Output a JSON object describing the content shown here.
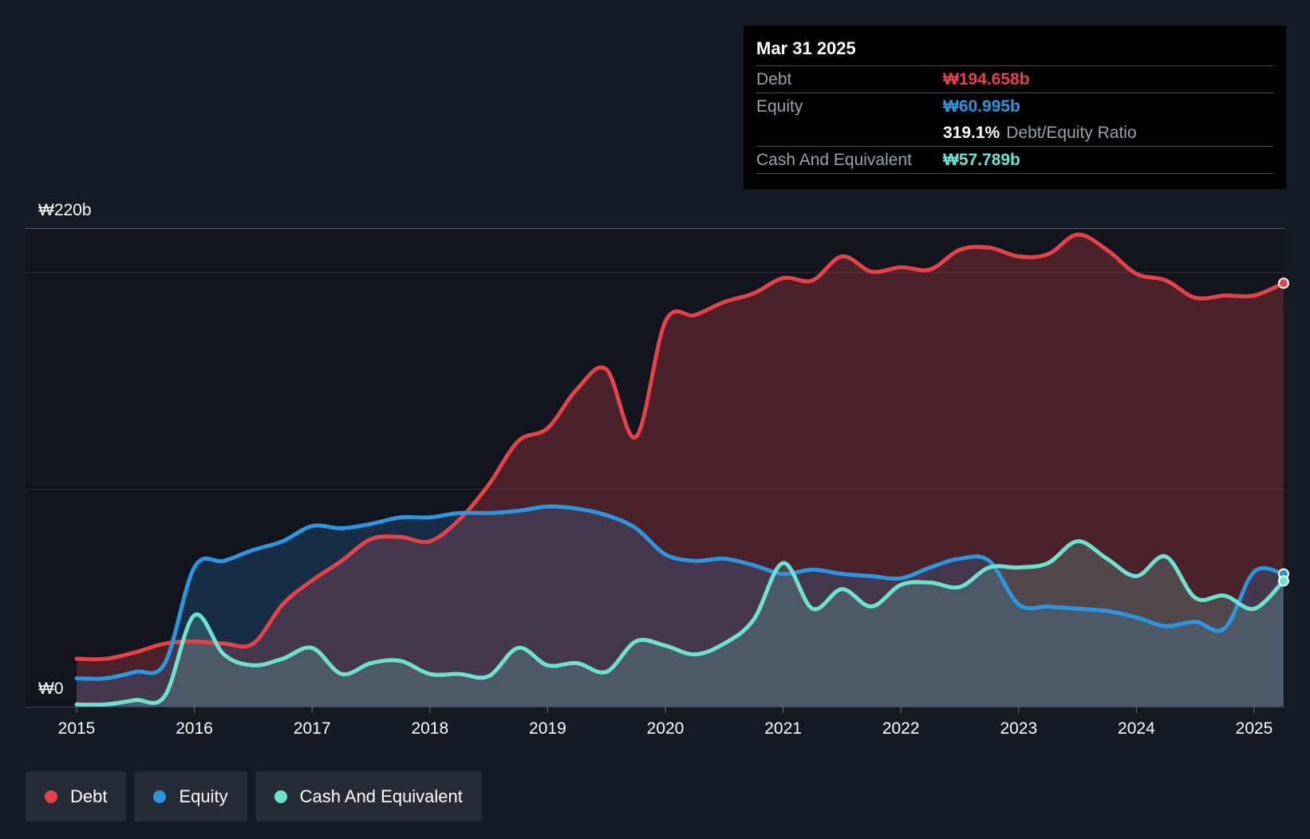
{
  "tooltip": {
    "date": "Mar 31 2025",
    "debt_label": "Debt",
    "debt_value": "₩194.658b",
    "equity_label": "Equity",
    "equity_value": "₩60.995b",
    "ratio_value": "319.1%",
    "ratio_label": "Debt/Equity Ratio",
    "cash_label": "Cash And Equivalent",
    "cash_value": "₩57.789b"
  },
  "legend": [
    {
      "label": "Debt",
      "color": "#e5424a"
    },
    {
      "label": "Equity",
      "color": "#2b97e0"
    },
    {
      "label": "Cash And Equivalent",
      "color": "#6ce3d0"
    }
  ],
  "chart_data": {
    "type": "area",
    "title": "",
    "xlabel": "",
    "ylabel": "",
    "ylim": [
      0,
      220
    ],
    "xlim": [
      2015.0,
      2025.25
    ],
    "y_tick_labels": [
      {
        "value": 220,
        "label": "₩220b"
      },
      {
        "value": 0,
        "label": "₩0"
      }
    ],
    "gridlines": [
      200,
      100
    ],
    "x_ticks": [
      "2015",
      "2016",
      "2017",
      "2018",
      "2019",
      "2020",
      "2021",
      "2022",
      "2023",
      "2024",
      "2025"
    ],
    "series": [
      {
        "name": "Debt",
        "color": "#e5424a",
        "x": [
          2015.0,
          2015.25,
          2015.5,
          2015.75,
          2016.0,
          2016.25,
          2016.5,
          2016.75,
          2017.0,
          2017.25,
          2017.5,
          2017.75,
          2018.0,
          2018.25,
          2018.5,
          2018.75,
          2019.0,
          2019.25,
          2019.5,
          2019.75,
          2020.0,
          2020.25,
          2020.5,
          2020.75,
          2021.0,
          2021.25,
          2021.5,
          2021.75,
          2022.0,
          2022.25,
          2022.5,
          2022.75,
          2023.0,
          2023.25,
          2023.5,
          2023.75,
          2024.0,
          2024.25,
          2024.5,
          2024.75,
          2025.0,
          2025.25
        ],
        "values": [
          22,
          22,
          25,
          29,
          30,
          29,
          29,
          47,
          58,
          67,
          77,
          78,
          76,
          86,
          102,
          122,
          128,
          146,
          155,
          124,
          177,
          180,
          186,
          190,
          197,
          196,
          207,
          200,
          202,
          201,
          210,
          211,
          207,
          208,
          217,
          210,
          199,
          196,
          188,
          189,
          189,
          194.658
        ]
      },
      {
        "name": "Equity",
        "color": "#2b97e0",
        "x": [
          2015.0,
          2015.25,
          2015.5,
          2015.75,
          2016.0,
          2016.25,
          2016.5,
          2016.75,
          2017.0,
          2017.25,
          2017.5,
          2017.75,
          2018.0,
          2018.25,
          2018.5,
          2018.75,
          2019.0,
          2019.25,
          2019.5,
          2019.75,
          2020.0,
          2020.25,
          2020.5,
          2020.75,
          2021.0,
          2021.25,
          2021.5,
          2021.75,
          2022.0,
          2022.25,
          2022.5,
          2022.75,
          2023.0,
          2023.25,
          2023.5,
          2023.75,
          2024.0,
          2024.25,
          2024.5,
          2024.75,
          2025.0,
          2025.25
        ],
        "values": [
          13,
          13,
          16,
          20,
          64,
          67,
          72,
          76,
          83,
          82,
          84,
          87,
          87,
          89,
          89,
          90,
          92,
          91,
          88,
          82,
          70,
          67,
          68,
          65,
          61,
          63,
          61,
          60,
          59,
          64,
          68,
          67,
          47,
          46,
          45,
          44,
          41,
          37,
          39,
          36,
          62,
          60.995
        ]
      },
      {
        "name": "Cash And Equivalent",
        "color": "#6ce3d0",
        "x": [
          2015.0,
          2015.25,
          2015.5,
          2015.75,
          2016.0,
          2016.25,
          2016.5,
          2016.75,
          2017.0,
          2017.25,
          2017.5,
          2017.75,
          2018.0,
          2018.25,
          2018.5,
          2018.75,
          2019.0,
          2019.25,
          2019.5,
          2019.75,
          2020.0,
          2020.25,
          2020.5,
          2020.75,
          2021.0,
          2021.25,
          2021.5,
          2021.75,
          2022.0,
          2022.25,
          2022.5,
          2022.75,
          2023.0,
          2023.25,
          2023.5,
          2023.75,
          2024.0,
          2024.25,
          2024.5,
          2024.75,
          2025.0,
          2025.25
        ],
        "values": [
          1,
          1,
          3,
          5,
          42,
          24,
          19,
          22,
          27,
          15,
          20,
          21,
          15,
          15,
          14,
          27,
          19,
          20,
          16,
          30,
          28,
          24,
          29,
          40,
          66,
          45,
          54,
          46,
          56,
          57,
          55,
          64,
          64,
          66,
          76,
          68,
          60,
          69,
          50,
          51,
          45,
          57.789
        ]
      }
    ]
  }
}
